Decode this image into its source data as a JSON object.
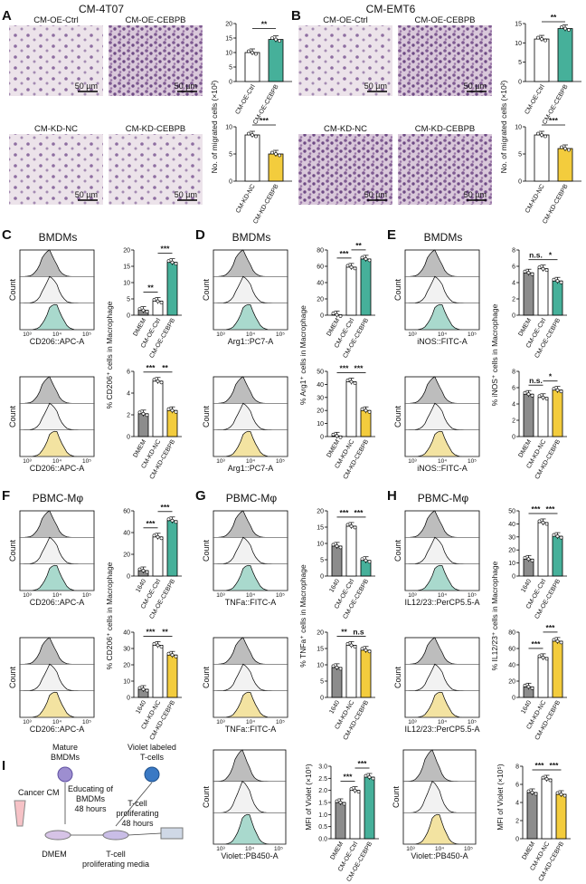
{
  "colors": {
    "grey": "#8c8c8c",
    "teal": "#46b09a",
    "yellow": "#f3cc3d",
    "white": "#ffffff",
    "light": "#c9c9c9",
    "green_fill": "#a9d9cd",
    "yellow_fill": "#f3e3a1"
  },
  "panels": {
    "A": {
      "letter": "A",
      "title": "CM-4T07",
      "images": [
        "CM-OE-Ctrl",
        "CM-OE-CEBPB",
        "CM-KD-NC",
        "CM-KD-CEBPB"
      ],
      "scale": "50 µm",
      "ylabel": "No. of migrated cells (×10²)",
      "top": {
        "sig": "**",
        "ticks": [
          "0",
          "5",
          "10",
          "15",
          "20"
        ],
        "cats": [
          "CM-OE-Ctrl",
          "CM-OE-CEBPB"
        ]
      },
      "bot": {
        "sig": "***",
        "ticks": [
          "0",
          "5",
          "10"
        ],
        "cats": [
          "CM-KD-NC",
          "CM-KD-CEBPB"
        ]
      }
    },
    "B": {
      "letter": "B",
      "title": "CM-EMT6",
      "images": [
        "CM-OE-Ctrl",
        "CM-OE-CEBPB",
        "CM-KD-NC",
        "CM-KD-CEBPB"
      ],
      "scale": "50 µm",
      "ylabel": "No. of migrated cells (×10²)",
      "top": {
        "sig": "**",
        "ticks": [
          "0",
          "5",
          "10",
          "15"
        ],
        "cats": [
          "CM-OE-Ctrl",
          "CM-OE-CEBPB"
        ]
      },
      "bot": {
        "sig": "***",
        "ticks": [
          "0",
          "5",
          "10"
        ],
        "cats": [
          "CM-KD-NC",
          "CM-KD-CEBPB"
        ]
      }
    },
    "C": {
      "letter": "C",
      "title": "BMDMs",
      "count": "Count",
      "xtop": "CD206::APC-A",
      "xbot": "CD206::APC-A",
      "ylabel": "% CD206⁺ cells in Macrophage",
      "top": {
        "sig": [
          "**",
          "***"
        ],
        "ticks": [
          "0",
          "5",
          "10",
          "15",
          "20"
        ],
        "cats": [
          "DMEM",
          "CM-OE-Ctrl",
          "CM-OE-CEBPB"
        ]
      },
      "bot": {
        "sig": [
          "***",
          "**"
        ],
        "ticks": [
          "0",
          "2",
          "4",
          "6"
        ],
        "cats": [
          "DMEM",
          "CM-KD-NC",
          "CM-KD-CEBPB"
        ]
      }
    },
    "D": {
      "letter": "D",
      "title": "BMDMs",
      "count": "Count",
      "xtop": "Arg1::PC7-A",
      "xbot": "Arg1::PC7-A",
      "ylabel": "% Arg1⁺ cells in Macrophage",
      "top": {
        "sig": [
          "***",
          "**"
        ],
        "ticks": [
          "0",
          "20",
          "40",
          "60",
          "80"
        ],
        "cats": [
          "DMEM",
          "CM-OE-Ctrl",
          "CM-OE-CEBPB"
        ]
      },
      "bot": {
        "sig": [
          "***",
          "***"
        ],
        "ticks": [
          "0",
          "10",
          "20",
          "30",
          "40",
          "50"
        ],
        "cats": [
          "DMEM",
          "CM-KD-NC",
          "CM-KD-CEBPB"
        ]
      }
    },
    "E": {
      "letter": "E",
      "title": "BMDMs",
      "count": "Count",
      "xtop": "iNOS::FITC-A",
      "xbot": "iNOS::FITC-A",
      "ylabel": "% iNOS⁺ cells in Macrophage",
      "top": {
        "sig": [
          "n.s.",
          "*"
        ],
        "ticks": [
          "0",
          "2",
          "4",
          "6",
          "8"
        ],
        "cats": [
          "DMEM",
          "CM-OE-Ctrl",
          "CM-OE-CEBPB"
        ]
      },
      "bot": {
        "sig": [
          "n.s.",
          "*"
        ],
        "ticks": [
          "0",
          "2",
          "4",
          "6",
          "8"
        ],
        "cats": [
          "DMEM",
          "CM-KD-NC",
          "CM-KD-CEBPB"
        ]
      }
    },
    "F": {
      "letter": "F",
      "title": "PBMC-Mφ",
      "count": "Count",
      "xtop": "CD206::APC-A",
      "xbot": "CD206::APC-A",
      "ylabel": "% CD206⁺ cells in Macrophage",
      "top": {
        "sig": [
          "***",
          "***"
        ],
        "ticks": [
          "0",
          "20",
          "40",
          "60"
        ],
        "cats": [
          "1640",
          "CM-OE-Ctrl",
          "CM-OE-CEBPB"
        ]
      },
      "bot": {
        "sig": [
          "***",
          "**"
        ],
        "ticks": [
          "0",
          "10",
          "20",
          "30",
          "40"
        ],
        "cats": [
          "1640",
          "CM-KD-NC",
          "CM-KD-CEBPB"
        ]
      }
    },
    "G": {
      "letter": "G",
      "title": "PBMC-Mφ",
      "count": "Count",
      "xtop": "TNFa::FITC-A",
      "xbot": "TNFa::FITC-A",
      "ylabel": "% TNFa⁺ cells in Macrophage",
      "top": {
        "sig": [
          "***",
          "***"
        ],
        "ticks": [
          "0",
          "5",
          "10",
          "15",
          "20"
        ],
        "cats": [
          "1640",
          "CM-OE-Ctrl",
          "CM-OE-CEBPB"
        ]
      },
      "bot": {
        "sig": [
          "**",
          "n.s"
        ],
        "ticks": [
          "0",
          "5",
          "10",
          "15",
          "20"
        ],
        "cats": [
          "1640",
          "CM-KD-NC",
          "CM-KD-CEBPB"
        ]
      }
    },
    "H": {
      "letter": "H",
      "title": "PBMC-Mφ",
      "count": "Count",
      "xtop": "IL12/23::PerCP5.5-A",
      "xbot": "IL12/23::PerCP5.5-A",
      "ylabel": "% IL12/23⁺ cells in Macrophage",
      "top": {
        "sig": [
          "***",
          "***"
        ],
        "ticks": [
          "0",
          "10",
          "20",
          "30",
          "40",
          "50"
        ],
        "cats": [
          "1640",
          "CM-OE-Ctrl",
          "CM-OE-CEBPB"
        ]
      },
      "bot": {
        "sig": [
          "***",
          "***"
        ],
        "ticks": [
          "0",
          "20",
          "40",
          "60",
          "80"
        ],
        "cats": [
          "1640",
          "CM-KD-NC",
          "CM-KD-CEBPB"
        ]
      }
    },
    "I": {
      "letter": "I",
      "mature": "Mature",
      "bmdms": "BMDMs",
      "violet": "Violet labeled",
      "tcells": "T-cells",
      "cancer": "Cancer CM",
      "educating": "Educating of",
      "educating2": "BMDMs",
      "h48a": "48 hours",
      "tprolif": "T-cell",
      "tprolif2": "proliferating",
      "h48b": "48 hours",
      "dmem": "DMEM",
      "media1": "T-cell",
      "media2": "proliferating media",
      "count": "Count",
      "xa": "Violet::PB450-A",
      "xb": "Violet::PB450-A",
      "ylabel": "MFI of Violet (×10⁵)",
      "oe": {
        "sig": [
          "***",
          "***"
        ],
        "ticks": [
          "0.0",
          "0.5",
          "1.0",
          "1.5",
          "2.0",
          "2.5",
          "3.0"
        ],
        "cats": [
          "DMEM",
          "CM-OE-Ctrl",
          "CM-OE-CEBPB"
        ]
      },
      "kd": {
        "sig": [
          "***",
          "***"
        ],
        "ticks": [
          "0",
          "2",
          "4",
          "6",
          "8"
        ],
        "cats": [
          "DMEM",
          "CM-KD-NC",
          "CM-KD-CEBPB"
        ]
      }
    }
  },
  "chart_data": [
    {
      "type": "bar",
      "title": "CM-4T07 OE",
      "categories": [
        "CM-OE-Ctrl",
        "CM-OE-CEBPB"
      ],
      "values": [
        10,
        14.5
      ],
      "ylim": [
        0,
        20
      ]
    },
    {
      "type": "bar",
      "title": "CM-4T07 KD",
      "categories": [
        "CM-KD-NC",
        "CM-KD-CEBPB"
      ],
      "values": [
        8.5,
        5
      ],
      "ylim": [
        0,
        10
      ]
    },
    {
      "type": "bar",
      "title": "CM-EMT6 OE",
      "categories": [
        "CM-OE-Ctrl",
        "CM-OE-CEBPB"
      ],
      "values": [
        11,
        13.7
      ],
      "ylim": [
        0,
        15
      ]
    },
    {
      "type": "bar",
      "title": "CM-EMT6 KD",
      "categories": [
        "CM-KD-NC",
        "CM-KD-CEBPB"
      ],
      "values": [
        8.5,
        6
      ],
      "ylim": [
        0,
        10
      ]
    },
    {
      "type": "bar",
      "title": "C top",
      "categories": [
        "DMEM",
        "CM-OE-Ctrl",
        "CM-OE-CEBPB"
      ],
      "values": [
        1.5,
        4.3,
        16.2
      ],
      "ylim": [
        0,
        20
      ]
    },
    {
      "type": "bar",
      "title": "C bottom",
      "categories": [
        "DMEM",
        "CM-KD-NC",
        "CM-KD-CEBPB"
      ],
      "values": [
        2.1,
        5.1,
        2.4
      ],
      "ylim": [
        0,
        6
      ]
    },
    {
      "type": "bar",
      "title": "D top",
      "categories": [
        "DMEM",
        "CM-OE-Ctrl",
        "CM-OE-CEBPB"
      ],
      "values": [
        0.5,
        59,
        69
      ],
      "ylim": [
        0,
        80
      ]
    },
    {
      "type": "bar",
      "title": "D bottom",
      "categories": [
        "DMEM",
        "CM-KD-NC",
        "CM-KD-CEBPB"
      ],
      "values": [
        0.5,
        42,
        20
      ],
      "ylim": [
        0,
        50
      ]
    },
    {
      "type": "bar",
      "title": "E top",
      "categories": [
        "DMEM",
        "CM-OE-Ctrl",
        "CM-OE-CEBPB"
      ],
      "values": [
        5.2,
        5.7,
        4.2
      ],
      "ylim": [
        0,
        8
      ]
    },
    {
      "type": "bar",
      "title": "E bottom",
      "categories": [
        "DMEM",
        "CM-KD-NC",
        "CM-KD-CEBPB"
      ],
      "values": [
        5.2,
        4.8,
        5.7
      ],
      "ylim": [
        0,
        8
      ]
    },
    {
      "type": "bar",
      "title": "F top",
      "categories": [
        "1640",
        "CM-OE-Ctrl",
        "CM-OE-CEBPB"
      ],
      "values": [
        5,
        36,
        51
      ],
      "ylim": [
        0,
        60
      ]
    },
    {
      "type": "bar",
      "title": "F bottom",
      "categories": [
        "1640",
        "CM-KD-NC",
        "CM-KD-CEBPB"
      ],
      "values": [
        5,
        32,
        26
      ],
      "ylim": [
        0,
        40
      ]
    },
    {
      "type": "bar",
      "title": "G top",
      "categories": [
        "1640",
        "CM-OE-Ctrl",
        "CM-OE-CEBPB"
      ],
      "values": [
        9.2,
        15.3,
        4.8
      ],
      "ylim": [
        0,
        20
      ]
    },
    {
      "type": "bar",
      "title": "G bottom",
      "categories": [
        "1640",
        "CM-KD-NC",
        "CM-KD-CEBPB"
      ],
      "values": [
        9.2,
        16,
        14.5
      ],
      "ylim": [
        0,
        20
      ]
    },
    {
      "type": "bar",
      "title": "H top",
      "categories": [
        "1640",
        "CM-OE-Ctrl",
        "CM-OE-CEBPB"
      ],
      "values": [
        13,
        41,
        30.5
      ],
      "ylim": [
        0,
        50
      ]
    },
    {
      "type": "bar",
      "title": "H bottom",
      "categories": [
        "1640",
        "CM-KD-NC",
        "CM-KD-CEBPB"
      ],
      "values": [
        13,
        49,
        69
      ],
      "ylim": [
        0,
        80
      ]
    },
    {
      "type": "bar",
      "title": "I OE",
      "categories": [
        "DMEM",
        "CM-OE-Ctrl",
        "CM-OE-CEBPB"
      ],
      "values": [
        1.5,
        2.0,
        2.55
      ],
      "ylim": [
        0,
        3
      ]
    },
    {
      "type": "bar",
      "title": "I KD",
      "categories": [
        "DMEM",
        "CM-KD-NC",
        "CM-KD-CEBPB"
      ],
      "values": [
        5.1,
        6.6,
        4.9
      ],
      "ylim": [
        0,
        8
      ]
    }
  ]
}
